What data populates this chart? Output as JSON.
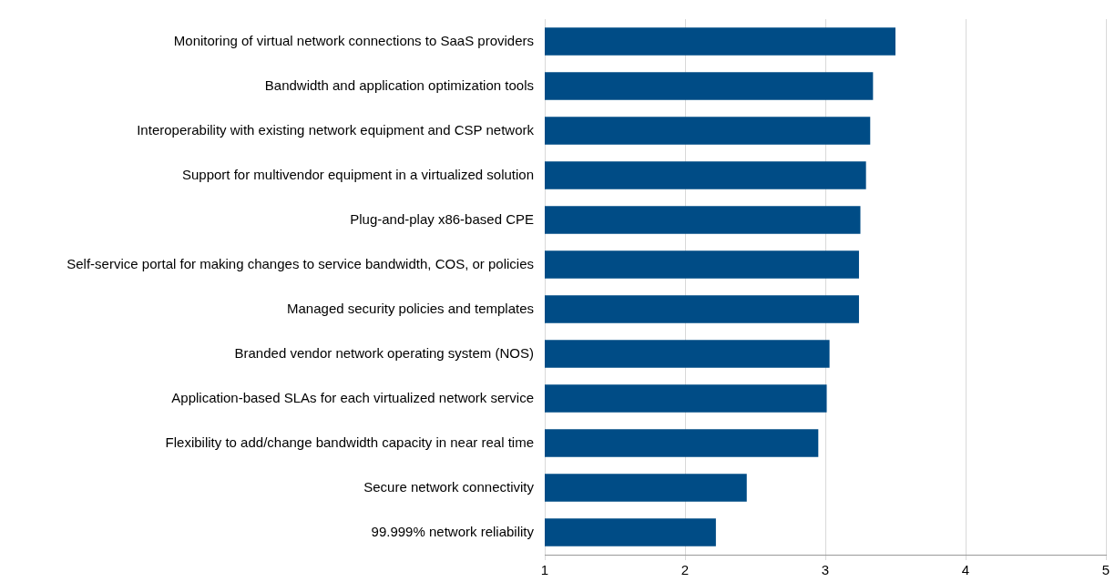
{
  "chart_data": {
    "type": "bar",
    "orientation": "horizontal",
    "categories": [
      "Monitoring of virtual network connections to SaaS providers",
      "Bandwidth and application optimization tools",
      "Interoperability with existing network equipment and CSP network",
      "Support for multivendor equipment in a virtualized solution",
      "Plug-and-play x86-based CPE",
      "Self-service portal for making changes to service bandwidth, COS, or policies",
      "Managed security policies and templates",
      "Branded vendor network operating system (NOS)",
      "Application-based SLAs for each virtualized network service",
      "Flexibility to add/change bandwidth capacity in near real time",
      "Secure network connectivity",
      "99.999% network reliability"
    ],
    "values": [
      3.5,
      3.34,
      3.32,
      3.29,
      3.25,
      3.24,
      3.24,
      3.03,
      3.01,
      2.95,
      2.44,
      2.22
    ],
    "color": "#004c86",
    "xlim": [
      1,
      5
    ],
    "xticks": [
      1,
      2,
      3,
      4,
      5
    ],
    "grid": "x",
    "legend": false
  }
}
